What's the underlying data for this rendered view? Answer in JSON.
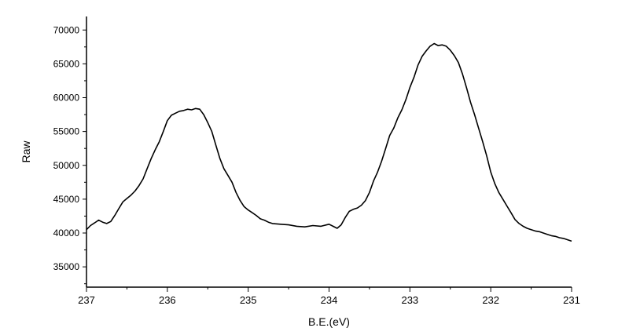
{
  "chart_data": {
    "type": "line",
    "title": "",
    "xlabel": "B.E.(eV)",
    "ylabel": "Raw",
    "x_reversed": true,
    "xlim": [
      237,
      231
    ],
    "ylim": [
      32000,
      72000
    ],
    "x_ticks": [
      237,
      236,
      235,
      234,
      233,
      232,
      231
    ],
    "y_ticks": [
      35000,
      40000,
      45000,
      50000,
      55000,
      60000,
      65000,
      70000
    ],
    "grid": false,
    "legend": "none",
    "line_color": "#000000",
    "series": [
      {
        "x": [
          237.0,
          236.95,
          236.9,
          236.85,
          236.8,
          236.75,
          236.7,
          236.65,
          236.6,
          236.55,
          236.5,
          236.45,
          236.4,
          236.35,
          236.3,
          236.25,
          236.2,
          236.15,
          236.1,
          236.05,
          236.0,
          235.95,
          235.9,
          235.85,
          235.8,
          235.75,
          235.7,
          235.65,
          235.6,
          235.55,
          235.5,
          235.45,
          235.4,
          235.35,
          235.3,
          235.25,
          235.2,
          235.15,
          235.1,
          235.05,
          235.0,
          234.95,
          234.9,
          234.85,
          234.8,
          234.75,
          234.7,
          234.6,
          234.5,
          234.4,
          234.3,
          234.2,
          234.1,
          234.0,
          233.95,
          233.9,
          233.85,
          233.8,
          233.75,
          233.7,
          233.65,
          233.6,
          233.55,
          233.5,
          233.45,
          233.4,
          233.35,
          233.3,
          233.25,
          233.2,
          233.15,
          233.1,
          233.05,
          233.0,
          232.95,
          232.9,
          232.85,
          232.8,
          232.75,
          232.7,
          232.65,
          232.6,
          232.55,
          232.5,
          232.45,
          232.4,
          232.35,
          232.3,
          232.25,
          232.2,
          232.15,
          232.1,
          232.05,
          232.0,
          231.95,
          231.9,
          231.85,
          231.8,
          231.75,
          231.7,
          231.65,
          231.6,
          231.55,
          231.5,
          231.45,
          231.4,
          231.35,
          231.3,
          231.25,
          231.2,
          231.15,
          231.1,
          231.05,
          231.0
        ],
        "y": [
          40500,
          41100,
          41500,
          41900,
          41600,
          41400,
          41700,
          42600,
          43600,
          44600,
          45100,
          45600,
          46200,
          47000,
          48000,
          49500,
          51000,
          52300,
          53500,
          55000,
          56600,
          57400,
          57700,
          58000,
          58100,
          58300,
          58200,
          58400,
          58300,
          57500,
          56300,
          55000,
          53000,
          51000,
          49500,
          48500,
          47500,
          46000,
          44800,
          43900,
          43400,
          43000,
          42600,
          42100,
          41900,
          41600,
          41400,
          41300,
          41200,
          41000,
          40900,
          41100,
          41000,
          41300,
          41000,
          40700,
          41200,
          42300,
          43200,
          43500,
          43700,
          44100,
          44800,
          46000,
          47700,
          49000,
          50600,
          52500,
          54400,
          55500,
          57000,
          58200,
          59700,
          61500,
          63000,
          64800,
          66100,
          66900,
          67600,
          68000,
          67700,
          67800,
          67600,
          67000,
          66200,
          65200,
          63500,
          61500,
          59300,
          57500,
          55500,
          53500,
          51400,
          49000,
          47300,
          46000,
          45000,
          44000,
          43000,
          42000,
          41400,
          41000,
          40700,
          40500,
          40300,
          40200,
          40000,
          39800,
          39600,
          39500,
          39300,
          39200,
          39000,
          38800
        ]
      }
    ]
  }
}
